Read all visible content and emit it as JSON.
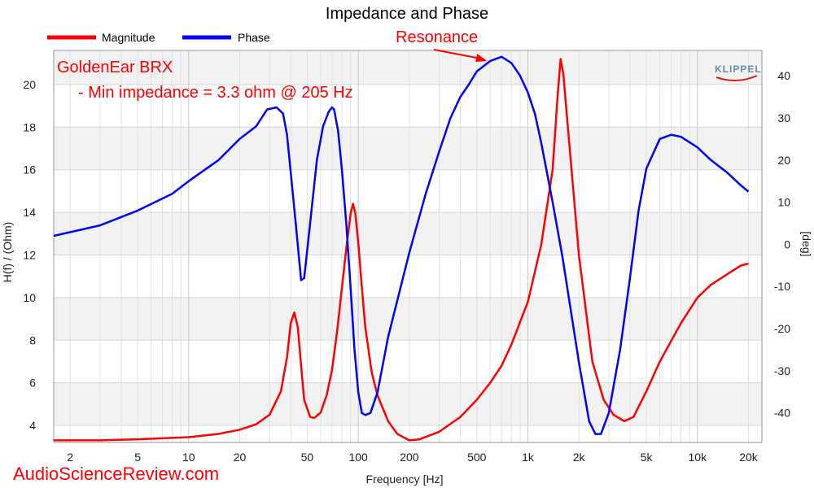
{
  "chart_data": {
    "type": "line",
    "title": "Impedance and Phase",
    "xlabel": "Frequency [Hz]",
    "ylabel": "H(f) / (Ohm)",
    "y2label": "[deg]",
    "xscale": "log",
    "xlim": [
      1.6,
      24000
    ],
    "ylim": [
      3.2,
      21.6
    ],
    "y2lim": [
      -47,
      46
    ],
    "xticks": [
      {
        "v": 2,
        "label": "2"
      },
      {
        "v": 5,
        "label": "5"
      },
      {
        "v": 10,
        "label": "10"
      },
      {
        "v": 20,
        "label": "20"
      },
      {
        "v": 50,
        "label": "50"
      },
      {
        "v": 100,
        "label": "100"
      },
      {
        "v": 200,
        "label": "200"
      },
      {
        "v": 500,
        "label": "500"
      },
      {
        "v": 1000,
        "label": "1k"
      },
      {
        "v": 2000,
        "label": "2k"
      },
      {
        "v": 5000,
        "label": "5k"
      },
      {
        "v": 10000,
        "label": "10k"
      },
      {
        "v": 20000,
        "label": "20k"
      }
    ],
    "yticks": [
      "4",
      "6",
      "8",
      "10",
      "12",
      "14",
      "16",
      "18",
      "20"
    ],
    "y2ticks": [
      "-40",
      "-30",
      "-20",
      "-10",
      "0",
      "10",
      "20",
      "30",
      "40"
    ],
    "grid": true,
    "legend_position": "top-left",
    "series": [
      {
        "name": "Magnitude",
        "color": "#ff0000",
        "axis": "left",
        "points": [
          [
            1.6,
            3.3
          ],
          [
            3,
            3.3
          ],
          [
            5,
            3.35
          ],
          [
            10,
            3.45
          ],
          [
            15,
            3.6
          ],
          [
            20,
            3.8
          ],
          [
            25,
            4.05
          ],
          [
            30,
            4.5
          ],
          [
            35,
            5.6
          ],
          [
            38,
            7.2
          ],
          [
            40,
            8.8
          ],
          [
            42,
            9.3
          ],
          [
            44,
            8.6
          ],
          [
            46,
            6.8
          ],
          [
            48,
            5.2
          ],
          [
            52,
            4.4
          ],
          [
            55,
            4.35
          ],
          [
            60,
            4.6
          ],
          [
            65,
            5.4
          ],
          [
            70,
            6.6
          ],
          [
            75,
            8.4
          ],
          [
            80,
            10.4
          ],
          [
            85,
            12.3
          ],
          [
            90,
            13.9
          ],
          [
            93,
            14.4
          ],
          [
            96,
            14.0
          ],
          [
            100,
            12.6
          ],
          [
            105,
            10.5
          ],
          [
            110,
            8.6
          ],
          [
            120,
            6.5
          ],
          [
            130,
            5.4
          ],
          [
            150,
            4.2
          ],
          [
            170,
            3.6
          ],
          [
            200,
            3.3
          ],
          [
            230,
            3.35
          ],
          [
            300,
            3.7
          ],
          [
            400,
            4.4
          ],
          [
            500,
            5.2
          ],
          [
            600,
            6.0
          ],
          [
            700,
            6.8
          ],
          [
            800,
            7.8
          ],
          [
            1000,
            9.8
          ],
          [
            1200,
            12.5
          ],
          [
            1400,
            16.0
          ],
          [
            1500,
            19.5
          ],
          [
            1560,
            21.2
          ],
          [
            1620,
            20.5
          ],
          [
            1700,
            18.5
          ],
          [
            2000,
            12.0
          ],
          [
            2400,
            7.0
          ],
          [
            2800,
            5.2
          ],
          [
            3200,
            4.5
          ],
          [
            3700,
            4.2
          ],
          [
            4200,
            4.4
          ],
          [
            5000,
            5.6
          ],
          [
            6000,
            7.0
          ],
          [
            8000,
            8.8
          ],
          [
            10000,
            10.0
          ],
          [
            12000,
            10.6
          ],
          [
            15000,
            11.1
          ],
          [
            18000,
            11.5
          ],
          [
            20000,
            11.6
          ]
        ]
      },
      {
        "name": "Phase",
        "color": "#0000ff",
        "axis": "right",
        "points": [
          [
            1.6,
            2
          ],
          [
            3,
            4.5
          ],
          [
            5,
            8
          ],
          [
            8,
            12
          ],
          [
            10,
            15
          ],
          [
            15,
            20
          ],
          [
            20,
            25
          ],
          [
            25,
            28
          ],
          [
            29,
            32
          ],
          [
            33,
            32.5
          ],
          [
            36,
            31
          ],
          [
            38,
            26
          ],
          [
            40,
            17
          ],
          [
            43,
            4
          ],
          [
            46,
            -8.5
          ],
          [
            48,
            -8
          ],
          [
            52,
            5
          ],
          [
            57,
            20
          ],
          [
            62,
            28
          ],
          [
            67,
            31.5
          ],
          [
            70,
            32.5
          ],
          [
            72,
            32
          ],
          [
            76,
            27
          ],
          [
            80,
            18
          ],
          [
            85,
            5
          ],
          [
            90,
            -10
          ],
          [
            95,
            -25
          ],
          [
            100,
            -35
          ],
          [
            105,
            -40
          ],
          [
            110,
            -40.5
          ],
          [
            118,
            -40
          ],
          [
            130,
            -35
          ],
          [
            150,
            -22
          ],
          [
            200,
            -2
          ],
          [
            250,
            12
          ],
          [
            300,
            22
          ],
          [
            350,
            30
          ],
          [
            400,
            35
          ],
          [
            450,
            38
          ],
          [
            500,
            41
          ],
          [
            600,
            43.5
          ],
          [
            700,
            44.5
          ],
          [
            800,
            43
          ],
          [
            900,
            40
          ],
          [
            1000,
            36
          ],
          [
            1100,
            31
          ],
          [
            1200,
            24
          ],
          [
            1400,
            10
          ],
          [
            1600,
            -3
          ],
          [
            2000,
            -28
          ],
          [
            2300,
            -42
          ],
          [
            2500,
            -45
          ],
          [
            2700,
            -45
          ],
          [
            3000,
            -40
          ],
          [
            3500,
            -25
          ],
          [
            4000,
            -8
          ],
          [
            4500,
            8
          ],
          [
            5000,
            18
          ],
          [
            6000,
            25
          ],
          [
            7000,
            26
          ],
          [
            8000,
            25.5
          ],
          [
            10000,
            23
          ],
          [
            12000,
            20
          ],
          [
            15000,
            17
          ],
          [
            18000,
            14
          ],
          [
            20000,
            12.5
          ]
        ]
      }
    ],
    "annotations": [
      {
        "text": "GoldenEar BRX",
        "color": "#ff0000"
      },
      {
        "text": "- Min impedance = 3.3 ohm @ 205 Hz",
        "color": "#ff0000"
      },
      {
        "text": "Resonance",
        "color": "#ff0000",
        "arrow_to": {
          "x": 600,
          "y2": 43.5
        }
      }
    ],
    "logo": "KLIPPEL",
    "watermark": "AudioScienceReview.com"
  }
}
